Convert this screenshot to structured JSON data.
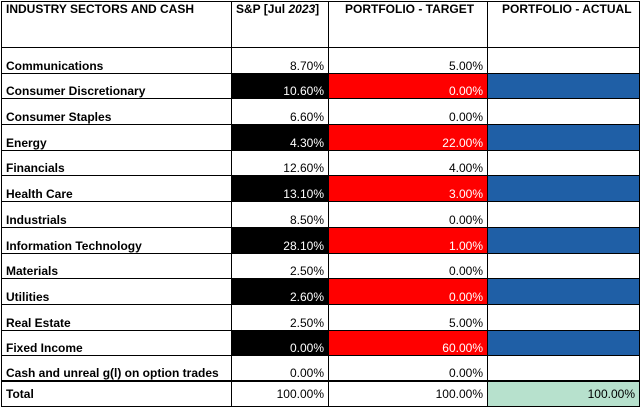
{
  "headers": {
    "sector": "INDUSTRY SECTORS AND CASH",
    "sp_prefix": "S&P [Jul ",
    "sp_year": "2023",
    "sp_suffix": "]",
    "target": "PORTFOLIO  - TARGET",
    "actual": "PORTFOLIO - ACTUAL"
  },
  "colors": {
    "highlight_sp": "#000000",
    "highlight_target": "#ff0000",
    "highlight_actual": "#1f5fa6",
    "total_actual": "#b7e1cd"
  },
  "rows": [
    {
      "sector": "Communications",
      "sp": "8.70%",
      "target": "5.00%",
      "actual": "",
      "highlight": false
    },
    {
      "sector": "Consumer Discretionary",
      "sp": "10.60%",
      "target": "0.00%",
      "actual": "",
      "highlight": true
    },
    {
      "sector": "Consumer Staples",
      "sp": "6.60%",
      "target": "0.00%",
      "actual": "",
      "highlight": false
    },
    {
      "sector": "Energy",
      "sp": "4.30%",
      "target": "22.00%",
      "actual": "",
      "highlight": true
    },
    {
      "sector": "Financials",
      "sp": "12.60%",
      "target": "4.00%",
      "actual": "",
      "highlight": false
    },
    {
      "sector": "Health Care",
      "sp": "13.10%",
      "target": "3.00%",
      "actual": "",
      "highlight": true
    },
    {
      "sector": "Industrials",
      "sp": "8.50%",
      "target": "0.00%",
      "actual": "",
      "highlight": false
    },
    {
      "sector": "Information Technology",
      "sp": "28.10%",
      "target": "1.00%",
      "actual": "",
      "highlight": true
    },
    {
      "sector": "Materials",
      "sp": "2.50%",
      "target": "0.00%",
      "actual": "",
      "highlight": false
    },
    {
      "sector": "Utilities",
      "sp": "2.60%",
      "target": "0.00%",
      "actual": "",
      "highlight": true
    },
    {
      "sector": "Real Estate",
      "sp": "2.50%",
      "target": "5.00%",
      "actual": "",
      "highlight": false
    },
    {
      "sector": "Fixed Income",
      "sp": "0.00%",
      "target": "60.00%",
      "actual": "",
      "highlight": true
    },
    {
      "sector": "Cash and unreal g(l) on option trades",
      "sp": "0.00%",
      "target": "0.00%",
      "actual": "",
      "highlight": false
    }
  ],
  "total": {
    "label": "Total",
    "sp": "100.00%",
    "target": "100.00%",
    "actual": "100.00%"
  }
}
